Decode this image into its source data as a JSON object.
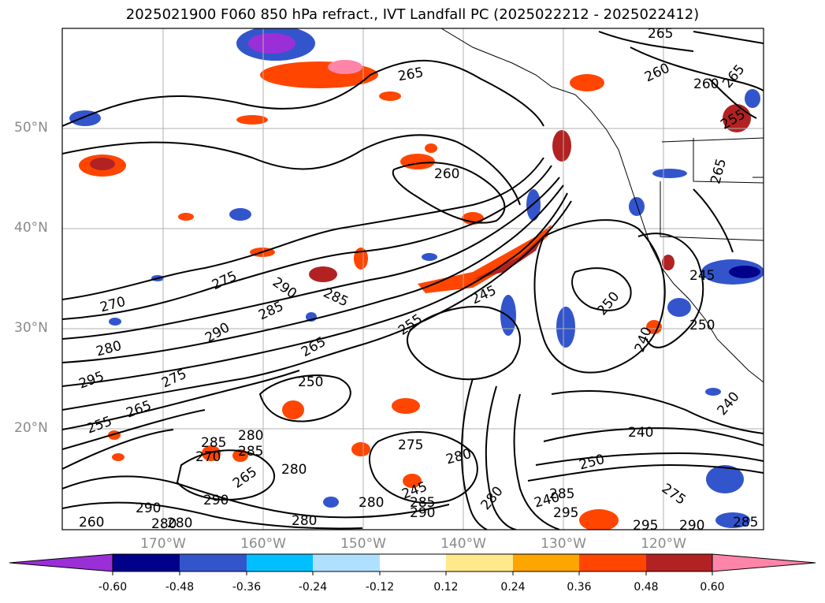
{
  "title": "2025021900 F060 850 hPa refract., IVT Landfall PC (2025022212 - 2025022412)",
  "lat_labels": [
    "50°N",
    "40°N",
    "30°N",
    "20°N"
  ],
  "lon_labels": [
    "170°W",
    "160°W",
    "150°W",
    "140°W",
    "130°W",
    "120°W"
  ],
  "colorbar": {
    "colors": [
      "#9a2fd8",
      "#00008b",
      "#3355cc",
      "#00bfff",
      "#b0e0ff",
      "#ffffff",
      "#ffe98a",
      "#ffa500",
      "#ff4500",
      "#b22222",
      "#ff85a8"
    ],
    "ticks": [
      "-0.60",
      "-0.48",
      "-0.36",
      "-0.24",
      "-0.12",
      "0.12",
      "0.24",
      "0.36",
      "0.48",
      "0.60"
    ]
  },
  "contour_labels": [
    "265",
    "265",
    "260",
    "260",
    "265",
    "255",
    "260",
    "265",
    "275",
    "270",
    "290",
    "285",
    "285",
    "290",
    "280",
    "275",
    "295",
    "265",
    "255",
    "250",
    "245",
    "250",
    "240",
    "245",
    "240",
    "250",
    "265",
    "240",
    "280",
    "285",
    "275",
    "280",
    "285",
    "280",
    "270",
    "265",
    "290",
    "255",
    "245",
    "280",
    "250",
    "240",
    "280",
    "280",
    "285",
    "290",
    "285",
    "275",
    "295",
    "260",
    "280",
    "295",
    "290",
    "285",
    "290",
    "280"
  ]
}
